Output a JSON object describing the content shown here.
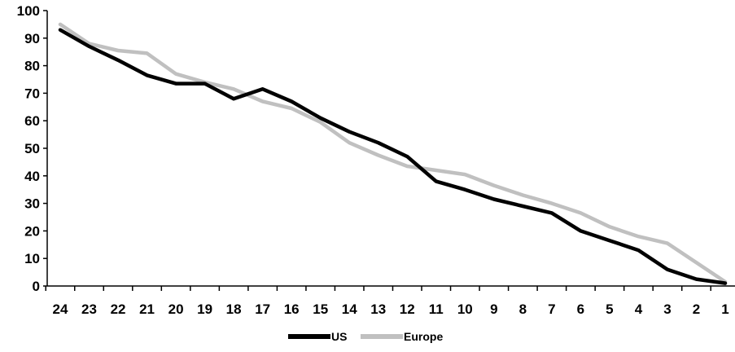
{
  "chart_data": {
    "type": "line",
    "title": "",
    "xlabel": "",
    "ylabel": "",
    "categories": [
      "24",
      "23",
      "22",
      "21",
      "20",
      "19",
      "18",
      "17",
      "16",
      "15",
      "14",
      "13",
      "12",
      "11",
      "10",
      "9",
      "8",
      "7",
      "6",
      "5",
      "4",
      "3",
      "2",
      "1"
    ],
    "ylim": [
      0,
      100
    ],
    "yticks": [
      0,
      10,
      20,
      30,
      40,
      50,
      60,
      70,
      80,
      90,
      100
    ],
    "grid": false,
    "legend_position": "bottom-center",
    "series": [
      {
        "name": "US",
        "color": "#000000",
        "values": [
          93,
          87,
          82,
          76.5,
          73.5,
          73.5,
          68,
          71.5,
          67,
          61,
          56,
          52,
          47,
          38,
          35,
          31.5,
          29,
          26.5,
          20,
          16.5,
          13,
          6,
          2.5,
          1
        ]
      },
      {
        "name": "Europe",
        "color": "#c0c0c0",
        "values": [
          95,
          88,
          85.5,
          84.5,
          77,
          74,
          71.5,
          67,
          64.5,
          59.5,
          52,
          47.5,
          43.5,
          42,
          40.5,
          36.5,
          33,
          30,
          26.5,
          21.5,
          18,
          15.5,
          8.5,
          1.5
        ]
      }
    ]
  }
}
